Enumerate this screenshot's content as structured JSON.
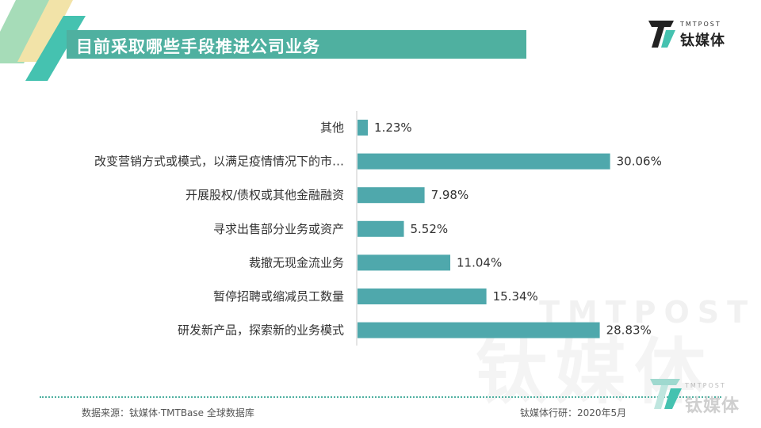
{
  "header": {
    "title": "目前采取哪些手段推进公司业务"
  },
  "logo": {
    "en": "TMTPOST",
    "cn": "钛媒体"
  },
  "watermark": {
    "en": "TMTPOST",
    "cn": "钛媒体"
  },
  "colors": {
    "accent": "#4fb0a0",
    "bar": "#4fa8ac",
    "corner_light_green": "#a6dcb8",
    "corner_yellow": "#f2e3a8"
  },
  "chart_data": {
    "type": "bar",
    "orientation": "horizontal",
    "categories": [
      "其他",
      "改变营销方式或模式，以满足疫情情况下的市…",
      "开展股权/债权或其他金融融资",
      "寻求出售部分业务或资产",
      "裁撤无现金流业务",
      "暂停招聘或缩减员工数量",
      "研发新产品，探索新的业务模式"
    ],
    "values": [
      1.23,
      30.06,
      7.98,
      5.52,
      11.04,
      15.34,
      28.83
    ],
    "value_labels": [
      "1.23%",
      "30.06%",
      "7.98%",
      "5.52%",
      "11.04%",
      "15.34%",
      "28.83%"
    ],
    "unit": "%",
    "xlim": [
      0,
      36
    ],
    "grid": false,
    "legend": "none"
  },
  "footer": {
    "source": "数据来源：钛媒体·TMTBase 全球数据库",
    "publisher": "钛媒体行研：2020年5月"
  }
}
